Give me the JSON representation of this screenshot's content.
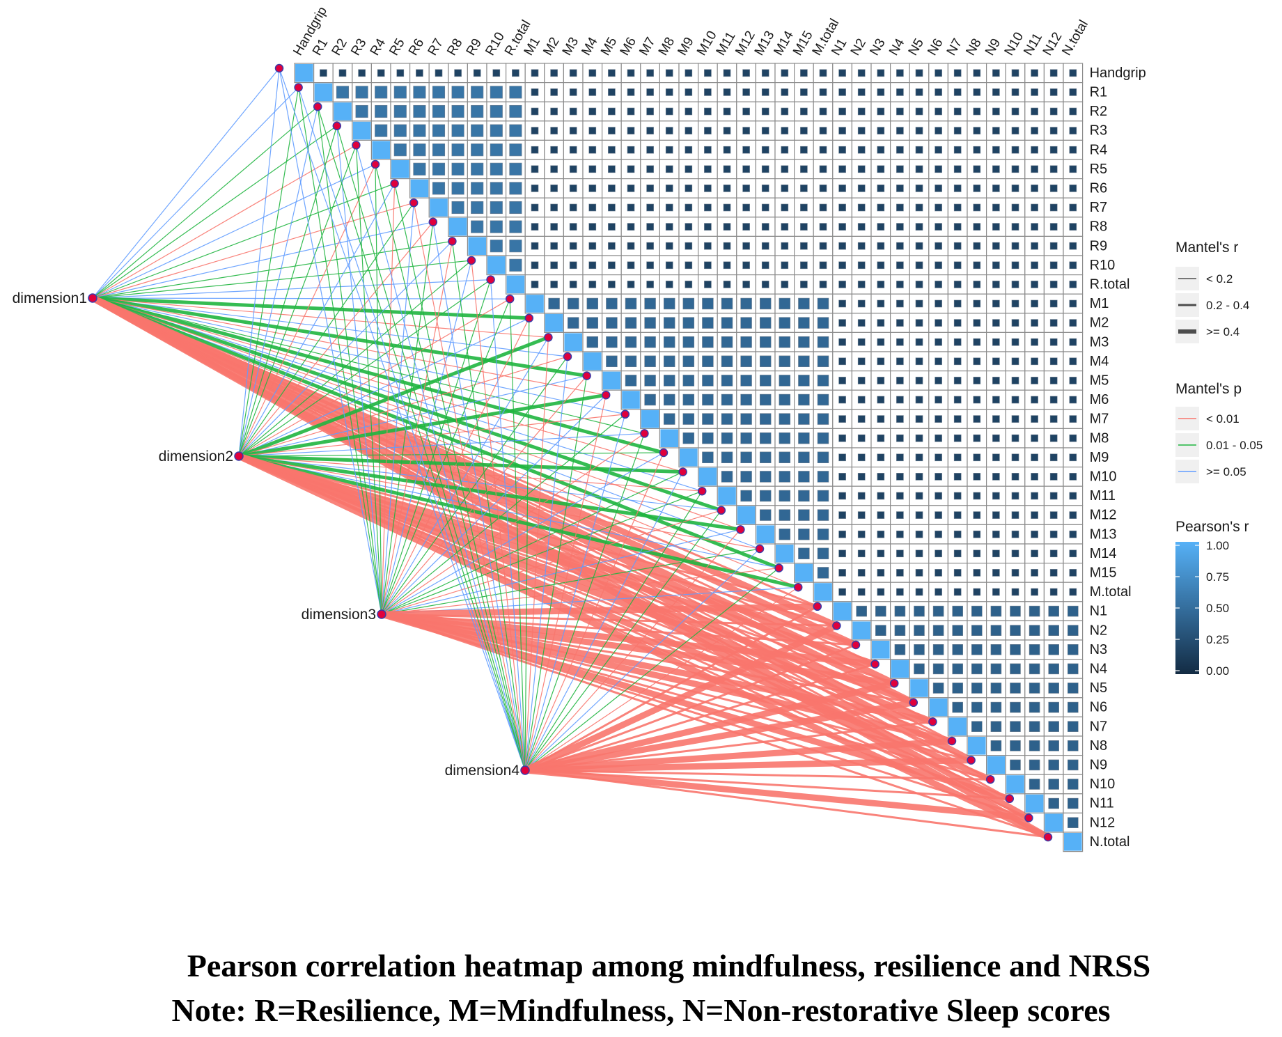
{
  "chart_data": {
    "type": "heatmap",
    "variables": [
      "Handgrip",
      "R1",
      "R2",
      "R3",
      "R4",
      "R5",
      "R6",
      "R7",
      "R8",
      "R9",
      "R10",
      "R.total",
      "M1",
      "M2",
      "M3",
      "M4",
      "M5",
      "M6",
      "M7",
      "M8",
      "M9",
      "M10",
      "M11",
      "M12",
      "M13",
      "M14",
      "M15",
      "M.total",
      "N1",
      "N2",
      "N3",
      "N4",
      "N5",
      "N6",
      "N7",
      "N8",
      "N9",
      "N10",
      "N11",
      "N12",
      "N.total"
    ],
    "dimensions": [
      "dimension1",
      "dimension2",
      "dimension3",
      "dimension4"
    ],
    "groups": [
      {
        "name": "Handgrip",
        "start": 0,
        "end": 0
      },
      {
        "name": "R",
        "start": 1,
        "end": 11
      },
      {
        "name": "M",
        "start": 12,
        "end": 27
      },
      {
        "name": "N",
        "start": 28,
        "end": 40
      }
    ],
    "within_group_r": {
      "Handgrip": 1.0,
      "R": 0.55,
      "M": 0.45,
      "N": 0.4
    },
    "between_group_r": 0.18,
    "diagonal_r": 1.0,
    "mantel_r_legend": {
      "title": "Mantel's r",
      "items": [
        "< 0.2",
        "0.2 - 0.4",
        ">= 0.4"
      ]
    },
    "mantel_p_legend": {
      "title": "Mantel's p",
      "items": [
        "< 0.01",
        "0.01 - 0.05",
        ">= 0.05"
      ],
      "colors": [
        "#f8766d",
        "#1fb53f",
        "#619cff"
      ]
    },
    "pearson_legend": {
      "title": "Pearson's r",
      "ticks": [
        "1.00",
        "0.75",
        "0.50",
        "0.25",
        "0.00"
      ],
      "color_high": "#56b1f7",
      "color_low": "#132b43"
    }
  },
  "caption": {
    "line1": "Pearson correlation heatmap among mindfulness, resilience and NRSS",
    "line2": "Note: R=Resilience, M=Mindfulness, N=Non-restorative Sleep scores"
  }
}
